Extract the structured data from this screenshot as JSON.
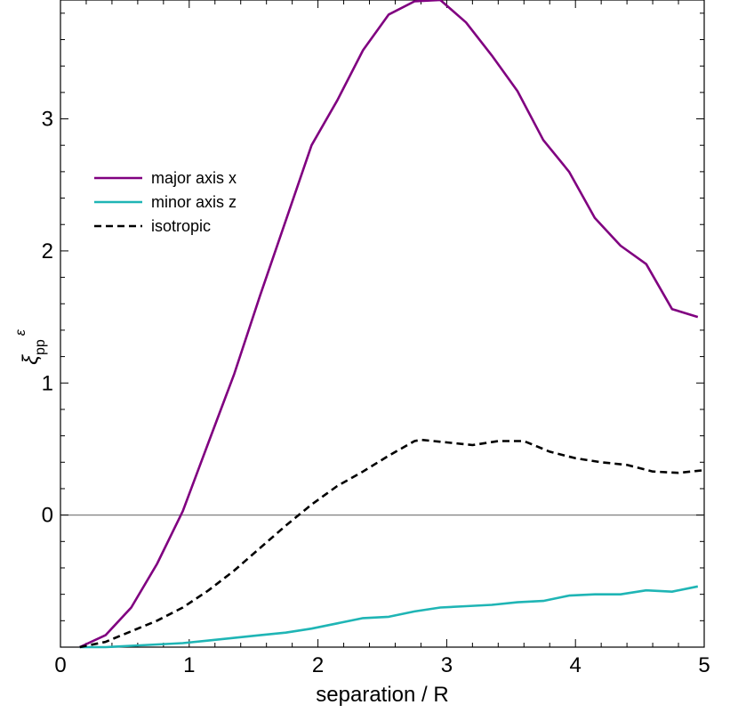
{
  "chart_data": {
    "type": "line",
    "title": "",
    "xlabel": "separation / R",
    "ylabel": {
      "base": "ξ",
      "sub": "pp",
      "sup": "ε"
    },
    "xlim": [
      0,
      5
    ],
    "ylim": [
      -1,
      3.9
    ],
    "xticks": [
      0,
      1,
      2,
      3,
      4,
      5
    ],
    "yticks": [
      0,
      1,
      2,
      3
    ],
    "xtick_labels": [
      "0",
      "1",
      "2",
      "3",
      "4",
      "5"
    ],
    "ytick_labels": [
      "0",
      "1",
      "2",
      "3"
    ],
    "zero_line": true,
    "grid": false,
    "legend_position": "upper-left",
    "colors": {
      "major": "#800080",
      "minor": "#1fb5b5",
      "isotropic": "#000000",
      "zero_line": "#808080"
    },
    "series": [
      {
        "name": "major axis x",
        "style": "solid",
        "x": [
          0.15,
          0.35,
          0.55,
          0.75,
          0.95,
          1.15,
          1.35,
          1.55,
          1.75,
          1.95,
          2.15,
          2.35,
          2.55,
          2.75,
          2.95,
          3.15,
          3.35,
          3.55,
          3.75,
          3.95,
          4.15,
          4.35,
          4.55,
          4.75,
          4.95
        ],
        "y": [
          -1.0,
          -0.91,
          -0.7,
          -0.37,
          0.03,
          0.55,
          1.07,
          1.66,
          2.23,
          2.8,
          3.14,
          3.52,
          3.79,
          3.89,
          3.9,
          3.73,
          3.48,
          3.21,
          2.84,
          2.6,
          2.25,
          2.04,
          1.9,
          1.56,
          1.5
        ]
      },
      {
        "name": "minor axis z",
        "style": "solid",
        "x": [
          0.15,
          0.35,
          0.55,
          0.75,
          0.95,
          1.15,
          1.35,
          1.55,
          1.75,
          1.95,
          2.15,
          2.35,
          2.55,
          2.75,
          2.95,
          3.15,
          3.35,
          3.55,
          3.75,
          3.95,
          4.15,
          4.35,
          4.55,
          4.75,
          4.95
        ],
        "y": [
          -1.0,
          -1.0,
          -0.99,
          -0.98,
          -0.97,
          -0.95,
          -0.93,
          -0.91,
          -0.89,
          -0.86,
          -0.82,
          -0.78,
          -0.77,
          -0.73,
          -0.7,
          -0.69,
          -0.68,
          -0.66,
          -0.65,
          -0.61,
          -0.6,
          -0.6,
          -0.57,
          -0.58,
          -0.54
        ]
      },
      {
        "name": "isotropic",
        "style": "dashed",
        "x": [
          0.15,
          0.35,
          0.55,
          0.75,
          0.95,
          1.15,
          1.35,
          1.55,
          1.75,
          1.95,
          2.15,
          2.35,
          2.55,
          2.75,
          2.8,
          3.0,
          3.2,
          3.4,
          3.6,
          3.8,
          4.0,
          4.2,
          4.4,
          4.6,
          4.8,
          5.0
        ],
        "y": [
          -1.0,
          -0.96,
          -0.88,
          -0.8,
          -0.7,
          -0.57,
          -0.42,
          -0.25,
          -0.08,
          0.08,
          0.22,
          0.33,
          0.45,
          0.56,
          0.57,
          0.55,
          0.53,
          0.56,
          0.56,
          0.48,
          0.43,
          0.4,
          0.38,
          0.33,
          0.32,
          0.34
        ]
      }
    ]
  }
}
